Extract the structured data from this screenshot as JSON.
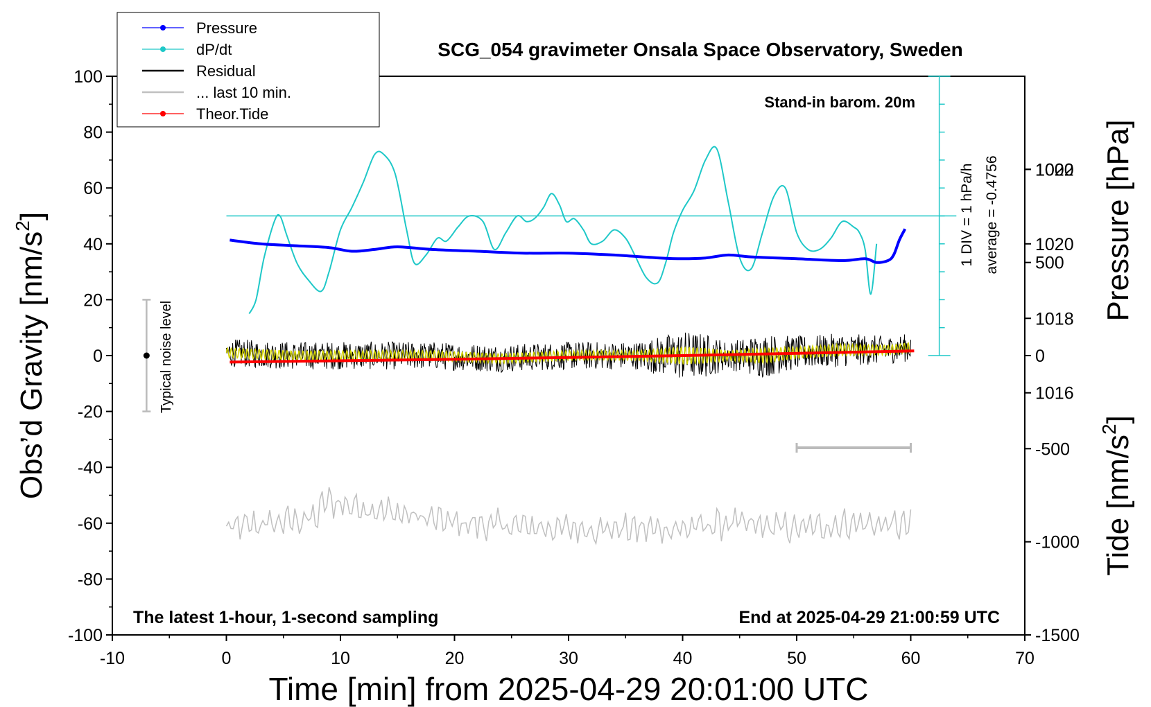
{
  "chart_data": {
    "type": "line",
    "title": "SCG_054 gravimeter Onsala Space Observatory, Sweden",
    "xlabel": "Time [min] from 2025-04-29 20:01:00 UTC",
    "ylabel_left_main": "Obs’d Gravity [nm/s",
    "ylabel_left_sup": "2",
    "ylabel_left_end": "]",
    "ylabel_right_pressure": "Pressure [hPa]",
    "ylabel_right_tide_main": "Tide [nm/s",
    "ylabel_right_tide_sup": "2",
    "ylabel_right_tide_end": "]",
    "xlim": [
      -10,
      70
    ],
    "ylim": [
      -100,
      100
    ],
    "x_ticks": [
      "-10",
      "0",
      "10",
      "20",
      "30",
      "40",
      "50",
      "60",
      "70"
    ],
    "y_ticks": [
      "-100",
      "-80",
      "-60",
      "-40",
      "-20",
      "0",
      "20",
      "40",
      "60",
      "80",
      "100"
    ],
    "pressure_ticks": [
      "1016",
      "1018",
      "1020",
      "1022"
    ],
    "tide_ticks": [
      "-1500",
      "-1000",
      "-500",
      "0",
      "500",
      "1000"
    ],
    "pressure_ylim": [
      1009.5,
      1024.5
    ],
    "tide_ylim": [
      -1500,
      1500
    ],
    "legend_position": "top-left",
    "legend": [
      {
        "name": "Pressure",
        "color": "#0000ff",
        "marker": "dot"
      },
      {
        "name": "dP/dt",
        "color": "#1fc8c8",
        "marker": "dot"
      },
      {
        "name": "Residual",
        "color": "#000000",
        "marker": "none"
      },
      {
        "name": "... last 10 min.",
        "color": "#c0c0c0",
        "marker": "none"
      },
      {
        "name": "Theor.Tide",
        "color": "#ff0000",
        "marker": "dot"
      }
    ],
    "annotations": {
      "stand_in": "Stand-in barom. 20m",
      "div_label": "1 DIV = 1 hPa/h",
      "average_label": "average = -0.4756",
      "noise_label": "Typical noise level",
      "bottom_left": "The latest 1-hour, 1-second sampling",
      "bottom_right": "End at 2025-04-29 21:00:59 UTC"
    },
    "series": [
      {
        "name": "Pressure",
        "axis": "pressure_hPa",
        "color": "#0000ff",
        "x": [
          0.3,
          3,
          6,
          9,
          11,
          13,
          15,
          18,
          22,
          26,
          30,
          34,
          38,
          40,
          42,
          44,
          46,
          50,
          54,
          56,
          57,
          58,
          58.5,
          59,
          59.5
        ],
        "y": [
          1020.1,
          1020.0,
          1019.95,
          1019.9,
          1019.8,
          1019.85,
          1019.92,
          1019.85,
          1019.8,
          1019.75,
          1019.75,
          1019.7,
          1019.62,
          1019.6,
          1019.62,
          1019.7,
          1019.65,
          1019.6,
          1019.55,
          1019.6,
          1019.5,
          1019.55,
          1019.7,
          1020.1,
          1020.4
        ]
      },
      {
        "name": "dP/dt",
        "axis": "gravity_plot_units",
        "color": "#1fc8c8",
        "x": [
          2.0,
          2.6,
          3.3,
          4.2,
          4.7,
          5.3,
          6.2,
          7.2,
          8.3,
          9.0,
          10.0,
          11.0,
          12.0,
          13.0,
          13.8,
          14.8,
          15.8,
          16.5,
          17.5,
          18.5,
          19.3,
          20.3,
          21.3,
          22.5,
          23.5,
          24.5,
          25.5,
          26.3,
          27.0,
          27.8,
          28.5,
          29.2,
          29.8,
          30.5,
          31.3,
          32.0,
          33.0,
          34.0,
          35.0,
          35.8,
          36.8,
          37.8,
          38.5,
          39.2,
          40.0,
          41.0,
          42.0,
          43.0,
          44.0,
          45.0,
          46.0,
          47.0,
          48.0,
          49.0,
          50.0,
          51.0,
          52.0,
          53.0,
          54.0,
          55.0,
          55.5,
          56.0,
          56.5,
          57.0
        ],
        "y": [
          15,
          20,
          35,
          48,
          50,
          43,
          33,
          27,
          23,
          30,
          45,
          53,
          62,
          72,
          72,
          65,
          45,
          33,
          36,
          42,
          41,
          46,
          50,
          48,
          38,
          44,
          50,
          48,
          49,
          53,
          58,
          54,
          48,
          49,
          45,
          40,
          41,
          45,
          42,
          36,
          28,
          26,
          33,
          44,
          52,
          59,
          70,
          74,
          55,
          35,
          31,
          44,
          57,
          60,
          44,
          38,
          38,
          42,
          48,
          46,
          44,
          38,
          22,
          40
        ]
      },
      {
        "name": "Residual",
        "axis": "gravity",
        "color": "#000000",
        "x": [
          0,
          6,
          12,
          18,
          24,
          30,
          36,
          40,
          42,
          44,
          47,
          50,
          54,
          58,
          60
        ],
        "y": [
          1,
          0,
          0,
          0,
          -1,
          0,
          0,
          0,
          0,
          0,
          0,
          1,
          2,
          2,
          3
        ],
        "noise_amplitude": [
          5,
          5,
          5,
          5,
          5,
          5,
          5,
          9,
          8,
          5,
          8,
          6,
          6,
          5,
          5
        ]
      },
      {
        "name": "... last 10 min.",
        "axis": "gravity",
        "color": "#c0c0c0",
        "x": [
          0,
          8,
          8.5,
          20,
          30,
          40,
          44,
          50,
          55,
          60
        ],
        "y": [
          -62,
          -58,
          -52,
          -60,
          -62,
          -62,
          -60,
          -62,
          -60,
          -61
        ]
      },
      {
        "name": "Theor.Tide",
        "axis": "tide_nm_s2",
        "color": "#ff0000",
        "x": [
          0.3,
          10,
          20,
          30,
          40,
          50,
          60.3
        ],
        "y": [
          -35,
          -28,
          -20,
          -10,
          0,
          12,
          25
        ]
      }
    ],
    "noise_bar": {
      "x": -7,
      "y_low": -20,
      "y_high": 20
    },
    "last10_bar": {
      "x_start": 50,
      "x_end": 60,
      "y": -33
    }
  }
}
